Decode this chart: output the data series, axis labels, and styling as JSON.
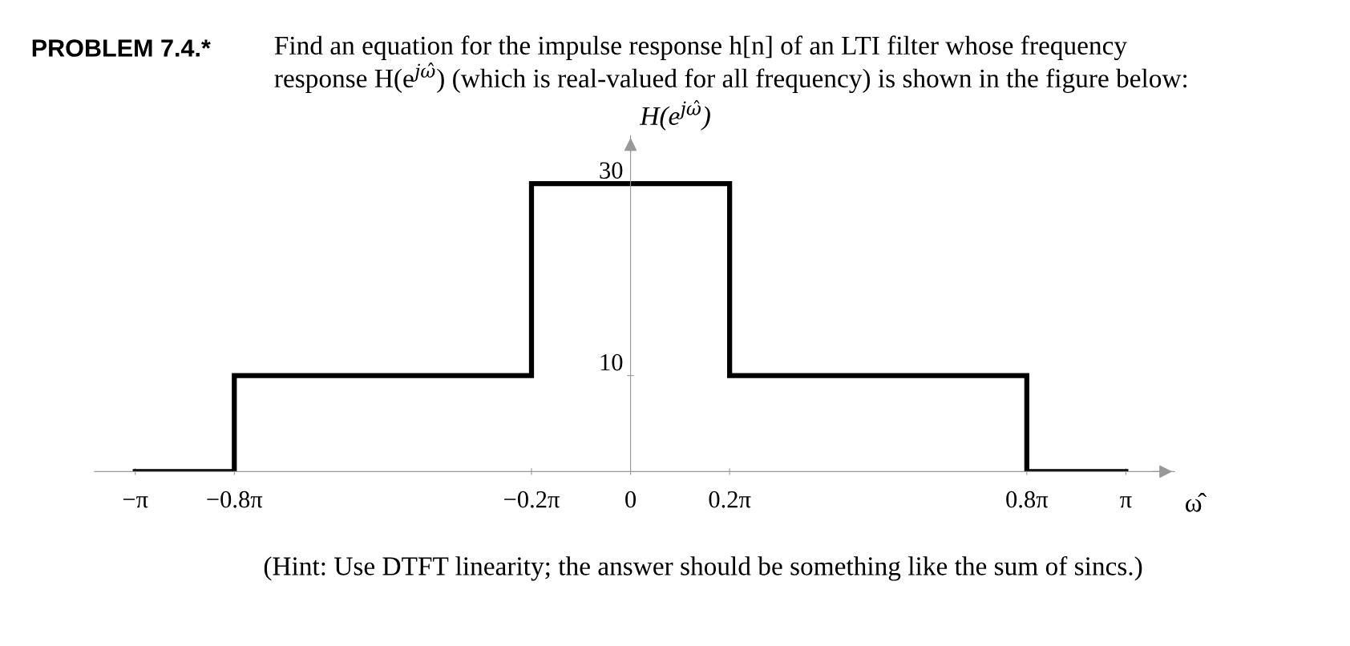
{
  "chart_data": {
    "type": "step",
    "title": "PROBLEM 7.4.*",
    "subtitle": "Find an equation for the impulse response h[n] of an LTI filter whose frequency\nresponse H(e$^{jω̂}$) (which is real-valued for all frequency) is shown in the figure below:",
    "xlabel": "ω̂",
    "ylabel": "H(e$^{jω̂}$)",
    "x": [
      -3.14159,
      -2.51327,
      -0.62832,
      0.62832,
      2.51327,
      3.14159
    ],
    "series": [
      {
        "color": "#000000",
        "values": [
          0,
          10,
          30,
          10,
          0,
          0
        ]
      }
    ],
    "xlim": [
      -3.4,
      3.45
    ],
    "ylim": [
      0,
      35
    ],
    "xticks": [
      {
        "value": -3.14159,
        "label": "−π"
      },
      {
        "value": -2.51327,
        "label": "−0.8π"
      },
      {
        "value": -0.62832,
        "label": "−0.2π"
      },
      0,
      {
        "value": 0.62832,
        "label": "0.2π"
      },
      {
        "value": 2.51327,
        "label": "0.8π"
      },
      {
        "value": 3.14159,
        "label": "π"
      }
    ],
    "yticks": [
      10,
      30
    ],
    "grid": false,
    "annotations": [
      "(Hint: Use DTFT linearity; the answer should be something like the sum of sincs.)"
    ]
  }
}
